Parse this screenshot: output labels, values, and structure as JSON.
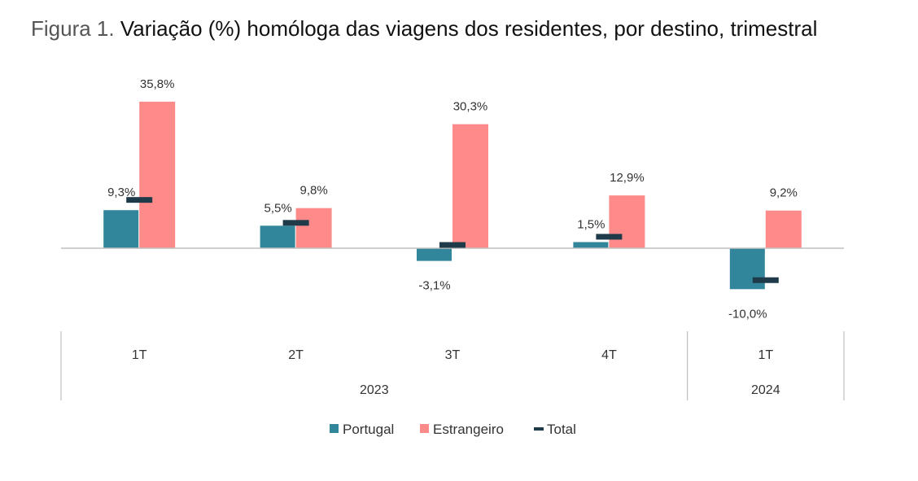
{
  "title": {
    "prefix": "Figura 1.",
    "main": "Variação (%) homóloga das viagens dos residentes, por destino, trimestral"
  },
  "colors": {
    "portugal": "#31869b",
    "estrangeiro": "#ff8a8a",
    "total": "#1f3a48",
    "axis": "#bfbfbf",
    "text": "#333333"
  },
  "chart_data": {
    "type": "bar",
    "title": "Variação (%) homóloga das viagens dos residentes, por destino, trimestral",
    "categories": [
      "1T",
      "2T",
      "3T",
      "4T",
      "1T"
    ],
    "groups": [
      {
        "label": "2023",
        "span": 4
      },
      {
        "label": "2024",
        "span": 1
      }
    ],
    "series": [
      {
        "name": "Portugal",
        "type": "bar",
        "values": [
          9.3,
          5.5,
          -3.1,
          1.5,
          -10.0
        ],
        "labels": [
          "9,3%",
          "5,5%",
          "-3,1%",
          "1,5%",
          "-10,0%"
        ]
      },
      {
        "name": "Estrangeiro",
        "type": "bar",
        "values": [
          35.8,
          9.8,
          30.3,
          12.9,
          9.2
        ],
        "labels": [
          "35,8%",
          "9,8%",
          "30,3%",
          "12,9%",
          "9,2%"
        ]
      },
      {
        "name": "Total",
        "type": "marker",
        "values": [
          11.8,
          6.2,
          0.8,
          2.8,
          -7.8
        ]
      }
    ],
    "ylim": [
      -20,
      40
    ],
    "legend": {
      "position": "bottom",
      "entries": [
        "Portugal",
        "Estrangeiro",
        "Total"
      ]
    }
  }
}
